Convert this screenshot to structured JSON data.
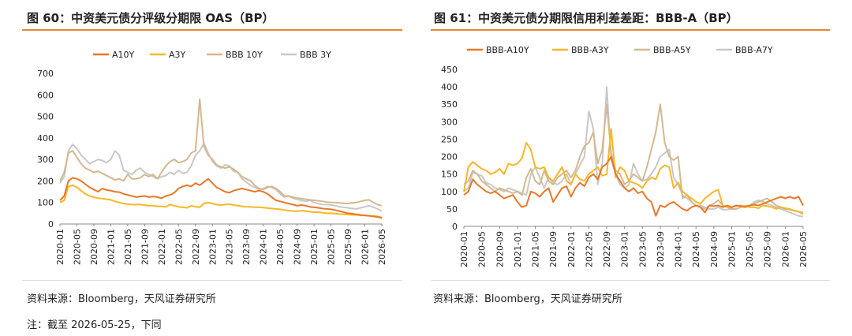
{
  "chart_data": [
    {
      "type": "line",
      "title": "图 60：中资美元债分评级分期限 OAS（BP）",
      "ylim": [
        0,
        700
      ],
      "yticks": [
        0,
        100,
        200,
        300,
        400,
        500,
        600,
        700
      ],
      "xlabels": [
        "2020-01",
        "2020-05",
        "2020-09",
        "2021-01",
        "2021-05",
        "2021-09",
        "2022-01",
        "2022-05",
        "2022-09",
        "2023-01",
        "2023-05",
        "2023-09",
        "2024-01",
        "2024-05",
        "2024-09",
        "2025-01",
        "2025-05",
        "2025-09",
        "2026-01",
        "2026-05"
      ],
      "x_start": 0,
      "x_end": 76,
      "legend_position": "top",
      "series": [
        {
          "name": "A10Y",
          "color": "#e8782a",
          "values": [
            110,
            130,
            200,
            215,
            210,
            200,
            185,
            170,
            160,
            150,
            165,
            158,
            155,
            150,
            148,
            140,
            135,
            130,
            125,
            128,
            130,
            125,
            128,
            125,
            120,
            130,
            135,
            145,
            165,
            175,
            180,
            175,
            190,
            180,
            195,
            210,
            190,
            170,
            160,
            150,
            145,
            155,
            160,
            165,
            160,
            155,
            150,
            155,
            150,
            140,
            125,
            110,
            105,
            100,
            95,
            90,
            85,
            88,
            85,
            80,
            78,
            75,
            72,
            70,
            68,
            65,
            60,
            55,
            50,
            48,
            45,
            42,
            40,
            38,
            35,
            33,
            30
          ]
        },
        {
          "name": "A3Y",
          "color": "#f5b827",
          "values": [
            100,
            110,
            175,
            180,
            170,
            155,
            140,
            130,
            125,
            120,
            118,
            115,
            112,
            105,
            100,
            95,
            92,
            90,
            90,
            90,
            88,
            85,
            85,
            82,
            82,
            80,
            90,
            85,
            80,
            78,
            75,
            85,
            80,
            78,
            95,
            100,
            95,
            90,
            88,
            90,
            92,
            88,
            85,
            82,
            80,
            80,
            78,
            78,
            76,
            74,
            72,
            70,
            68,
            65,
            62,
            60,
            60,
            62,
            60,
            58,
            55,
            55,
            52,
            50,
            50,
            48,
            46,
            45,
            44,
            42,
            42,
            40,
            40,
            38,
            37,
            35,
            25
          ]
        },
        {
          "name": "BBB 10Y",
          "color": "#d4b88e",
          "values": [
            200,
            240,
            330,
            340,
            310,
            280,
            260,
            250,
            240,
            245,
            235,
            225,
            215,
            205,
            210,
            200,
            230,
            210,
            210,
            215,
            230,
            220,
            230,
            210,
            240,
            270,
            290,
            300,
            285,
            290,
            300,
            330,
            340,
            580,
            360,
            320,
            300,
            275,
            265,
            260,
            265,
            255,
            240,
            220,
            210,
            200,
            180,
            165,
            160,
            170,
            175,
            165,
            150,
            130,
            130,
            125,
            120,
            118,
            115,
            112,
            110,
            108,
            105,
            102,
            100,
            100,
            98,
            96,
            95,
            98,
            100,
            105,
            110,
            112,
            100,
            90,
            85
          ]
        },
        {
          "name": "BBB 3Y",
          "color": "#c8c8c8",
          "values": [
            190,
            220,
            340,
            370,
            350,
            320,
            300,
            280,
            290,
            300,
            295,
            285,
            300,
            340,
            320,
            250,
            240,
            230,
            250,
            260,
            240,
            230,
            220,
            210,
            220,
            225,
            240,
            230,
            250,
            235,
            240,
            270,
            320,
            340,
            375,
            330,
            290,
            270,
            260,
            275,
            270,
            245,
            240,
            210,
            195,
            180,
            170,
            160,
            165,
            175,
            170,
            160,
            140,
            125,
            130,
            120,
            115,
            110,
            105,
            110,
            100,
            95,
            90,
            90,
            88,
            85,
            80,
            78,
            75,
            72,
            70,
            75,
            80,
            85,
            78,
            70,
            60
          ]
        }
      ]
    },
    {
      "type": "line",
      "title": "图 61：中资美元债分期限信用利差差距：BBB-A（BP）",
      "ylim": [
        0,
        450
      ],
      "yticks": [
        0,
        50,
        100,
        150,
        200,
        250,
        300,
        350,
        400,
        450
      ],
      "xlabels": [
        "2020-01",
        "2020-05",
        "2020-09",
        "2021-01",
        "2021-05",
        "2021-09",
        "2022-01",
        "2022-05",
        "2022-09",
        "2023-01",
        "2023-05",
        "2023-09",
        "2024-01",
        "2024-05",
        "2024-09",
        "2025-01",
        "2025-05",
        "2025-09",
        "2026-01",
        "2026-05"
      ],
      "x_start": 0,
      "x_end": 76,
      "legend_position": "top",
      "series": [
        {
          "name": "BBB-A10Y",
          "color": "#e8782a",
          "values": [
            90,
            100,
            135,
            120,
            110,
            100,
            95,
            100,
            90,
            80,
            85,
            90,
            70,
            55,
            60,
            100,
            95,
            85,
            100,
            110,
            70,
            90,
            110,
            115,
            85,
            110,
            125,
            115,
            140,
            150,
            135,
            170,
            180,
            200,
            150,
            130,
            110,
            100,
            110,
            95,
            100,
            80,
            70,
            30,
            60,
            55,
            65,
            70,
            60,
            50,
            45,
            55,
            60,
            55,
            40,
            60,
            58,
            60,
            55,
            60,
            55,
            60,
            58,
            55,
            60,
            62,
            60,
            65,
            70,
            75,
            80,
            85,
            80,
            85,
            80,
            85,
            60
          ]
        },
        {
          "name": "BBB-A3Y",
          "color": "#f5b827",
          "values": [
            100,
            170,
            185,
            175,
            165,
            160,
            150,
            155,
            165,
            150,
            180,
            175,
            180,
            195,
            240,
            220,
            170,
            165,
            170,
            140,
            130,
            150,
            170,
            130,
            120,
            150,
            135,
            130,
            150,
            160,
            170,
            145,
            150,
            280,
            140,
            170,
            160,
            130,
            125,
            120,
            110,
            130,
            140,
            135,
            165,
            175,
            170,
            110,
            125,
            100,
            90,
            80,
            70,
            65,
            80,
            90,
            100,
            105,
            60,
            55,
            55,
            58,
            60,
            58,
            55,
            55,
            52,
            60,
            58,
            55,
            50,
            55,
            52,
            50,
            45,
            42,
            35
          ]
        },
        {
          "name": "BBB-A5Y",
          "color": "#d4b88e",
          "values": [
            120,
            130,
            160,
            150,
            130,
            120,
            110,
            100,
            110,
            105,
            100,
            95,
            100,
            90,
            140,
            165,
            130,
            120,
            160,
            130,
            120,
            140,
            150,
            160,
            140,
            160,
            200,
            230,
            240,
            270,
            180,
            220,
            350,
            210,
            160,
            150,
            120,
            130,
            150,
            140,
            130,
            170,
            220,
            270,
            350,
            240,
            200,
            190,
            200,
            80,
            90,
            70,
            60,
            55,
            50,
            60,
            65,
            75,
            60,
            55,
            50,
            50,
            55,
            58,
            60,
            65,
            70,
            75,
            80,
            70,
            60,
            55,
            50,
            48,
            45,
            42,
            40
          ]
        },
        {
          "name": "BBB-A7Y",
          "color": "#c8c8c8",
          "values": [
            100,
            110,
            155,
            150,
            145,
            125,
            120,
            110,
            105,
            100,
            110,
            105,
            100,
            95,
            90,
            150,
            170,
            140,
            110,
            140,
            125,
            120,
            130,
            150,
            120,
            150,
            175,
            200,
            330,
            280,
            120,
            180,
            400,
            190,
            150,
            120,
            110,
            120,
            180,
            150,
            130,
            135,
            150,
            170,
            200,
            210,
            220,
            140,
            120,
            90,
            80,
            70,
            60,
            60,
            55,
            50,
            50,
            55,
            48,
            48,
            50,
            50,
            55,
            60,
            58,
            70,
            75,
            70,
            65,
            60,
            55,
            50,
            45,
            40,
            35,
            30,
            28
          ]
        }
      ]
    }
  ],
  "source_left": "资料来源：Bloomberg，天风证券研究所",
  "source_right": "资料来源：Bloomberg，天风证券研究所",
  "note": "注：截至 2026-05-25，下同"
}
